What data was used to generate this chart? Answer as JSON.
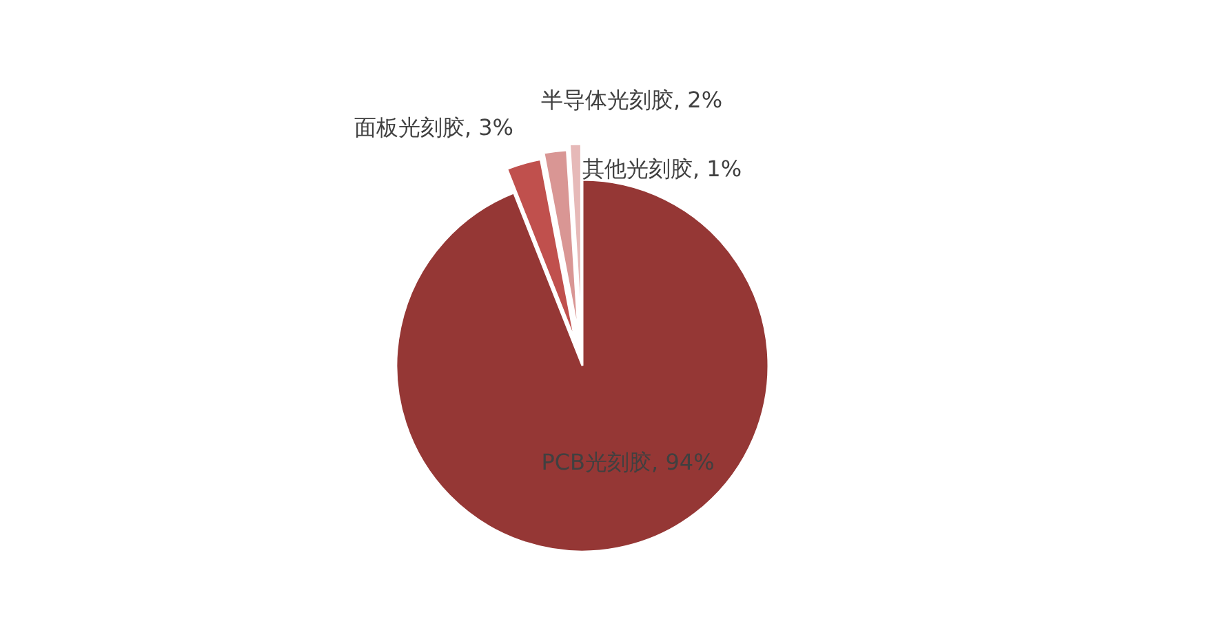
{
  "chart_data": {
    "type": "pie",
    "categories": [
      "PCB光刻胶",
      "面板光刻胶",
      "半导体光刻胶",
      "其他光刻胶"
    ],
    "values": [
      94,
      3,
      2,
      1
    ],
    "value_labels": [
      "94%",
      "3%",
      "2%",
      "1%"
    ],
    "colors": [
      "#953735",
      "#c0504d",
      "#d99694",
      "#e6b9b8"
    ]
  }
}
